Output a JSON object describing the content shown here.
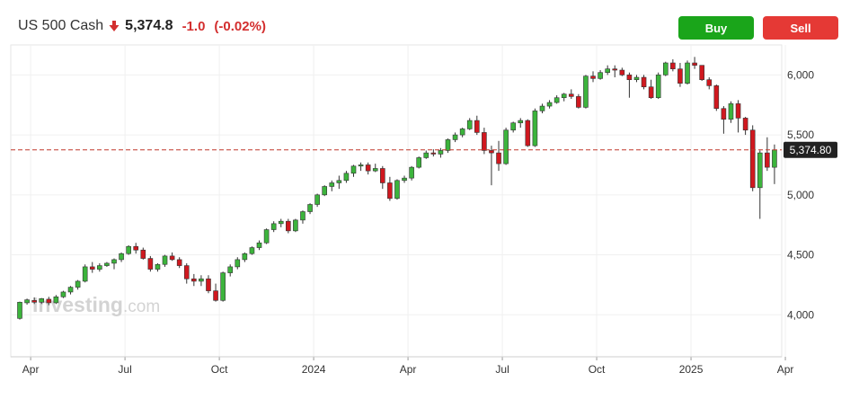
{
  "header": {
    "symbol": "US 500 Cash",
    "price": "5,374.8",
    "change": "-1.0",
    "change_pct": "(-0.02%)",
    "direction": "down"
  },
  "buttons": {
    "buy": "Buy",
    "sell": "Sell"
  },
  "watermark": {
    "text": "Investing",
    "suffix": ".com"
  },
  "colors": {
    "up": "#3cb43c",
    "down": "#d0181f",
    "buy": "#1aa51a",
    "sell": "#e53935",
    "last_line": "#c0392b"
  },
  "chart_data": {
    "type": "candlestick",
    "title": "",
    "last_price_label": "5,374.80",
    "last_price": 5374.8,
    "ylim": [
      3650,
      6250
    ],
    "y_ticks": [
      4000,
      4500,
      5000,
      5500,
      6000
    ],
    "y_tick_labels": [
      "4,000",
      "4,500",
      "5,000",
      "5,500",
      "6,000"
    ],
    "x_ticks": [
      {
        "label": "Apr",
        "index": 1.5
      },
      {
        "label": "Jul",
        "index": 14.5
      },
      {
        "label": "Oct",
        "index": 27.5
      },
      {
        "label": "2024",
        "index": 40.5
      },
      {
        "label": "Apr",
        "index": 53.5
      },
      {
        "label": "Jul",
        "index": 66.5
      },
      {
        "label": "Oct",
        "index": 79.5
      },
      {
        "label": "2025",
        "index": 92.5
      },
      {
        "label": "Apr",
        "index": 105.5
      }
    ],
    "grid": true,
    "frequency": "weekly",
    "candles": [
      [
        3970,
        4110,
        3960,
        4105
      ],
      [
        4100,
        4135,
        4085,
        4125
      ],
      [
        4120,
        4145,
        4090,
        4105
      ],
      [
        4105,
        4140,
        4090,
        4135
      ],
      [
        4130,
        4150,
        4080,
        4100
      ],
      [
        4100,
        4165,
        4090,
        4150
      ],
      [
        4150,
        4200,
        4140,
        4190
      ],
      [
        4190,
        4240,
        4170,
        4230
      ],
      [
        4230,
        4290,
        4210,
        4280
      ],
      [
        4280,
        4420,
        4270,
        4400
      ],
      [
        4400,
        4440,
        4350,
        4380
      ],
      [
        4380,
        4430,
        4360,
        4410
      ],
      [
        4410,
        4440,
        4400,
        4430
      ],
      [
        4430,
        4470,
        4380,
        4460
      ],
      [
        4460,
        4520,
        4440,
        4510
      ],
      [
        4510,
        4580,
        4500,
        4570
      ],
      [
        4570,
        4600,
        4510,
        4540
      ],
      [
        4540,
        4560,
        4460,
        4470
      ],
      [
        4470,
        4490,
        4360,
        4380
      ],
      [
        4380,
        4430,
        4360,
        4420
      ],
      [
        4420,
        4500,
        4400,
        4490
      ],
      [
        4490,
        4520,
        4450,
        4460
      ],
      [
        4460,
        4480,
        4390,
        4410
      ],
      [
        4410,
        4430,
        4260,
        4300
      ],
      [
        4300,
        4340,
        4240,
        4280
      ],
      [
        4280,
        4330,
        4240,
        4300
      ],
      [
        4300,
        4330,
        4180,
        4200
      ],
      [
        4200,
        4260,
        4110,
        4120
      ],
      [
        4120,
        4360,
        4110,
        4350
      ],
      [
        4350,
        4420,
        4320,
        4400
      ],
      [
        4400,
        4480,
        4380,
        4460
      ],
      [
        4460,
        4520,
        4440,
        4510
      ],
      [
        4510,
        4570,
        4500,
        4560
      ],
      [
        4560,
        4620,
        4540,
        4600
      ],
      [
        4600,
        4720,
        4590,
        4710
      ],
      [
        4710,
        4780,
        4690,
        4760
      ],
      [
        4760,
        4800,
        4730,
        4780
      ],
      [
        4780,
        4800,
        4680,
        4700
      ],
      [
        4700,
        4800,
        4690,
        4790
      ],
      [
        4790,
        4870,
        4760,
        4860
      ],
      [
        4860,
        4930,
        4840,
        4920
      ],
      [
        4920,
        5010,
        4900,
        5000
      ],
      [
        5000,
        5080,
        4990,
        5070
      ],
      [
        5070,
        5120,
        5030,
        5100
      ],
      [
        5100,
        5160,
        5050,
        5120
      ],
      [
        5120,
        5200,
        5100,
        5180
      ],
      [
        5180,
        5250,
        5150,
        5240
      ],
      [
        5240,
        5270,
        5200,
        5250
      ],
      [
        5250,
        5270,
        5170,
        5200
      ],
      [
        5200,
        5260,
        5190,
        5220
      ],
      [
        5220,
        5240,
        5050,
        5100
      ],
      [
        5100,
        5150,
        4950,
        4970
      ],
      [
        4970,
        5130,
        4960,
        5120
      ],
      [
        5120,
        5160,
        5100,
        5140
      ],
      [
        5140,
        5240,
        5120,
        5230
      ],
      [
        5230,
        5320,
        5220,
        5310
      ],
      [
        5310,
        5370,
        5300,
        5350
      ],
      [
        5350,
        5380,
        5320,
        5340
      ],
      [
        5340,
        5390,
        5310,
        5370
      ],
      [
        5370,
        5470,
        5350,
        5460
      ],
      [
        5460,
        5520,
        5440,
        5500
      ],
      [
        5500,
        5560,
        5480,
        5550
      ],
      [
        5550,
        5640,
        5540,
        5620
      ],
      [
        5620,
        5660,
        5500,
        5520
      ],
      [
        5520,
        5560,
        5340,
        5370
      ],
      [
        5370,
        5410,
        5080,
        5350
      ],
      [
        5350,
        5450,
        5200,
        5260
      ],
      [
        5260,
        5560,
        5250,
        5540
      ],
      [
        5540,
        5610,
        5520,
        5600
      ],
      [
        5600,
        5640,
        5560,
        5620
      ],
      [
        5620,
        5630,
        5400,
        5410
      ],
      [
        5410,
        5720,
        5400,
        5700
      ],
      [
        5700,
        5760,
        5680,
        5740
      ],
      [
        5740,
        5790,
        5720,
        5770
      ],
      [
        5770,
        5830,
        5760,
        5810
      ],
      [
        5810,
        5850,
        5780,
        5840
      ],
      [
        5840,
        5880,
        5800,
        5820
      ],
      [
        5820,
        5840,
        5720,
        5730
      ],
      [
        5730,
        6000,
        5720,
        5990
      ],
      [
        5990,
        6030,
        5940,
        5970
      ],
      [
        5970,
        6040,
        5960,
        6020
      ],
      [
        6020,
        6080,
        6000,
        6050
      ],
      [
        6050,
        6080,
        5980,
        6040
      ],
      [
        6040,
        6060,
        5990,
        6000
      ],
      [
        6000,
        6020,
        5810,
        5960
      ],
      [
        5960,
        6000,
        5940,
        5980
      ],
      [
        5980,
        6000,
        5880,
        5900
      ],
      [
        5900,
        5960,
        5800,
        5810
      ],
      [
        5810,
        6020,
        5800,
        6000
      ],
      [
        6000,
        6110,
        5990,
        6100
      ],
      [
        6100,
        6130,
        6030,
        6050
      ],
      [
        6050,
        6100,
        5900,
        5930
      ],
      [
        5930,
        6120,
        5920,
        6100
      ],
      [
        6100,
        6150,
        6050,
        6080
      ],
      [
        6080,
        6080,
        5950,
        5960
      ],
      [
        5960,
        5980,
        5880,
        5910
      ],
      [
        5910,
        5920,
        5700,
        5720
      ],
      [
        5720,
        5740,
        5510,
        5630
      ],
      [
        5630,
        5780,
        5600,
        5760
      ],
      [
        5760,
        5790,
        5520,
        5640
      ],
      [
        5640,
        5650,
        5500,
        5540
      ],
      [
        5540,
        5580,
        5030,
        5060
      ],
      [
        5060,
        5370,
        4800,
        5350
      ],
      [
        5350,
        5480,
        5200,
        5230
      ],
      [
        5230,
        5420,
        5090,
        5374.8
      ]
    ]
  }
}
